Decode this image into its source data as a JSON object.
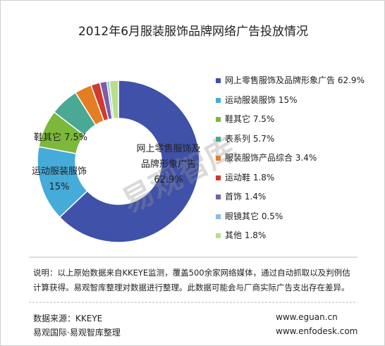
{
  "chart_data": {
    "type": "donut",
    "title": "2012年6月服装服饰品牌网络广告投放情况",
    "categories": [
      "网上零售服饰及品牌形象广告",
      "运动服装服饰",
      "鞋其它",
      "表系列",
      "服装服饰产品综合",
      "运动鞋",
      "首饰",
      "眼镜其它",
      "其他"
    ],
    "values": [
      62.9,
      15,
      7.5,
      5.7,
      3.4,
      1.8,
      1.4,
      0.5,
      1.8
    ],
    "value_labels": [
      "62.9%",
      "15%",
      "7.5%",
      "5.7%",
      "3.4%",
      "1.8%",
      "1.4%",
      "0.5%",
      "1.8%"
    ],
    "colors": [
      "#3f51a8",
      "#45abd9",
      "#7cb83a",
      "#4aa995",
      "#e57d25",
      "#d23a2e",
      "#7a5fa8",
      "#8dbbe3",
      "#b9de8c"
    ],
    "watermark": "易观智库"
  },
  "footer": {
    "note": "说明：以上原始数据来自KKEYE监测，覆盖500余家网络媒体，通过自动抓取以及判例估计算获得。易观智库整理对数据进行整理。此数据可能会与厂商实际广告支出存在差异。",
    "source": "数据来源：KKEYE",
    "org": "易观国际·易观智库整理",
    "url1": "www.eguan.cn",
    "url2": "www.enfodesk.com"
  }
}
